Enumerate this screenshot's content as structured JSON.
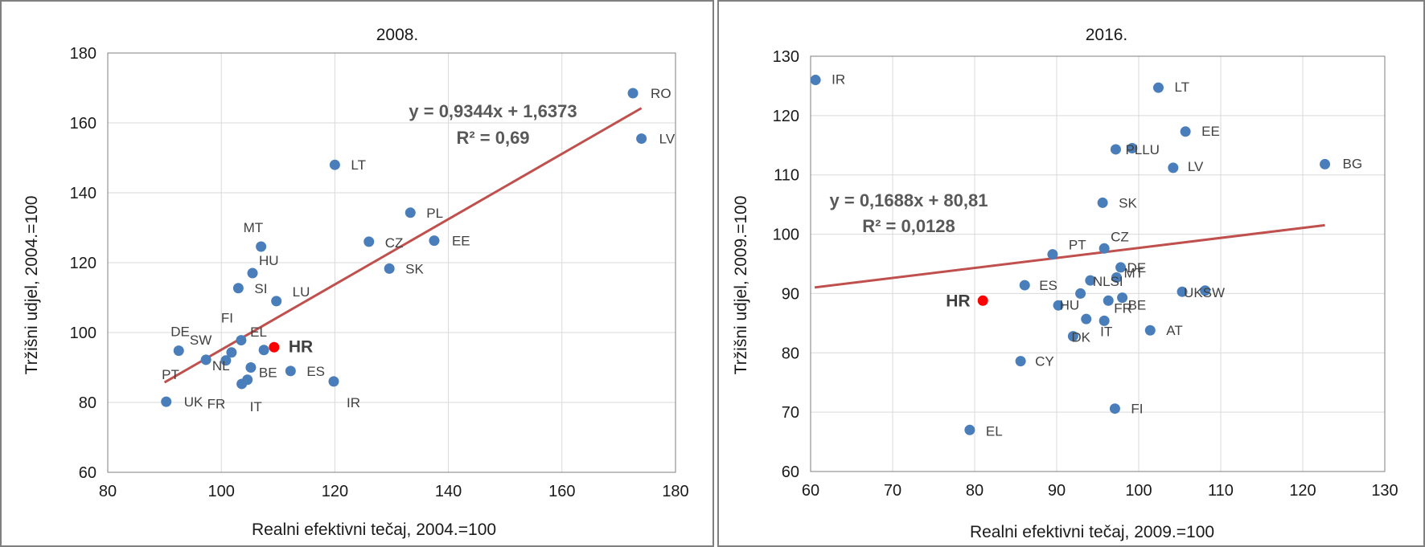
{
  "colors": {
    "point": "#4a7ebb",
    "highlight": "#ff0000",
    "trend": "#c0504d",
    "grid": "#d9d9d9",
    "frame": "#7f7f7f"
  },
  "chart_data": [
    {
      "type": "scatter",
      "title": "2008.",
      "xlabel": "Realni efektivni tečaj, 2004.=100",
      "ylabel": "Tržišni udjel,  2004.=100",
      "xlim": [
        80,
        180
      ],
      "ylim": [
        60,
        180
      ],
      "xticks": [
        80,
        100,
        120,
        140,
        160,
        180
      ],
      "yticks": [
        60,
        80,
        100,
        120,
        140,
        160,
        180
      ],
      "grid": true,
      "trendline": {
        "slope": 0.9344,
        "intercept": 1.6373,
        "x_from": 90,
        "x_to": 174,
        "equation": "y = 0,9344x + 1,6373",
        "r2": "R² = 0,69"
      },
      "points": [
        {
          "label": "RO",
          "x": 172.5,
          "y": 168.5
        },
        {
          "label": "LV",
          "x": 174,
          "y": 155.5
        },
        {
          "label": "LT",
          "x": 120,
          "y": 148
        },
        {
          "label": "PL",
          "x": 133.3,
          "y": 134.3
        },
        {
          "label": "CZ",
          "x": 126,
          "y": 126
        },
        {
          "label": "EE",
          "x": 137.5,
          "y": 126.3
        },
        {
          "label": "SK",
          "x": 129.6,
          "y": 118.3
        },
        {
          "label": "MT",
          "x": 107,
          "y": 124.6
        },
        {
          "label": "HU",
          "x": 105.5,
          "y": 117
        },
        {
          "label": "SI",
          "x": 103,
          "y": 112.7
        },
        {
          "label": "LU",
          "x": 109.7,
          "y": 109
        },
        {
          "label": "FI",
          "x": 103.5,
          "y": 97.8
        },
        {
          "label": "EL",
          "x": 107.5,
          "y": 95
        },
        {
          "label": "HR",
          "x": 109.3,
          "y": 95.8,
          "highlight": true
        },
        {
          "label": "DE",
          "x": 92.5,
          "y": 94.8
        },
        {
          "label": "SW",
          "x": 101.8,
          "y": 94.3
        },
        {
          "label": "PT",
          "x": 97.3,
          "y": 92.2
        },
        {
          "label": "NL",
          "x": 100.8,
          "y": 92
        },
        {
          "label": "BE",
          "x": 105.2,
          "y": 90
        },
        {
          "label": "ES",
          "x": 112.2,
          "y": 89
        },
        {
          "label": "FR",
          "x": 104.6,
          "y": 86.5
        },
        {
          "label": "IT",
          "x": 103.6,
          "y": 85.3
        },
        {
          "label": "IR",
          "x": 119.8,
          "y": 86
        },
        {
          "label": "UK",
          "x": 90.3,
          "y": 80.2
        }
      ]
    },
    {
      "type": "scatter",
      "title": "2016.",
      "xlabel": "Realni efektivni tečaj, 2009.=100",
      "ylabel": "Tržišni udjel,  2009.=100",
      "xlim": [
        60,
        130
      ],
      "ylim": [
        60,
        130
      ],
      "xticks": [
        60,
        70,
        80,
        90,
        100,
        110,
        120,
        130
      ],
      "yticks": [
        60,
        70,
        80,
        90,
        100,
        110,
        120,
        130
      ],
      "grid": true,
      "trendline": {
        "slope": 0.1688,
        "intercept": 80.81,
        "x_from": 60.5,
        "x_to": 122.7,
        "equation": "y = 0,1688x + 80,81",
        "r2": "R² = 0,0128"
      },
      "points": [
        {
          "label": "IR",
          "x": 60.6,
          "y": 126
        },
        {
          "label": "LT",
          "x": 102.4,
          "y": 124.7
        },
        {
          "label": "EE",
          "x": 105.7,
          "y": 117.3
        },
        {
          "label": "PLLU",
          "x": 97.2,
          "y": 114.3
        },
        {
          "label": "",
          "x": 99.2,
          "y": 114.5
        },
        {
          "label": "LV",
          "x": 104.2,
          "y": 111.2
        },
        {
          "label": "BG",
          "x": 122.7,
          "y": 111.8
        },
        {
          "label": "SK",
          "x": 95.6,
          "y": 105.3
        },
        {
          "label": "PT",
          "x": 89.5,
          "y": 96.6
        },
        {
          "label": "CZ",
          "x": 95.8,
          "y": 97.6
        },
        {
          "label": "DE",
          "x": 97.8,
          "y": 94.4
        },
        {
          "label": "MT",
          "x": 97.3,
          "y": 92.7
        },
        {
          "label": "NLSI",
          "x": 94.1,
          "y": 92.2
        },
        {
          "label": "ES",
          "x": 86.1,
          "y": 91.4
        },
        {
          "label": "HU",
          "x": 92.9,
          "y": 90
        },
        {
          "label": "",
          "x": 90.2,
          "y": 88
        },
        {
          "label": "BE",
          "x": 98,
          "y": 89.3
        },
        {
          "label": "FR",
          "x": 96.3,
          "y": 88.8
        },
        {
          "label": "HR",
          "x": 81,
          "y": 88.8,
          "highlight": true
        },
        {
          "label": "UKSW",
          "x": 105.3,
          "y": 90.3
        },
        {
          "label": "",
          "x": 108.1,
          "y": 90.5
        },
        {
          "label": "",
          "x": 93.6,
          "y": 85.7
        },
        {
          "label": "IT",
          "x": 95.8,
          "y": 85.4
        },
        {
          "label": "DK",
          "x": 92,
          "y": 82.8
        },
        {
          "label": "AT",
          "x": 101.4,
          "y": 83.8
        },
        {
          "label": "CY",
          "x": 85.6,
          "y": 78.6
        },
        {
          "label": "FI",
          "x": 97.1,
          "y": 70.6
        },
        {
          "label": "EL",
          "x": 79.4,
          "y": 67
        }
      ]
    }
  ]
}
